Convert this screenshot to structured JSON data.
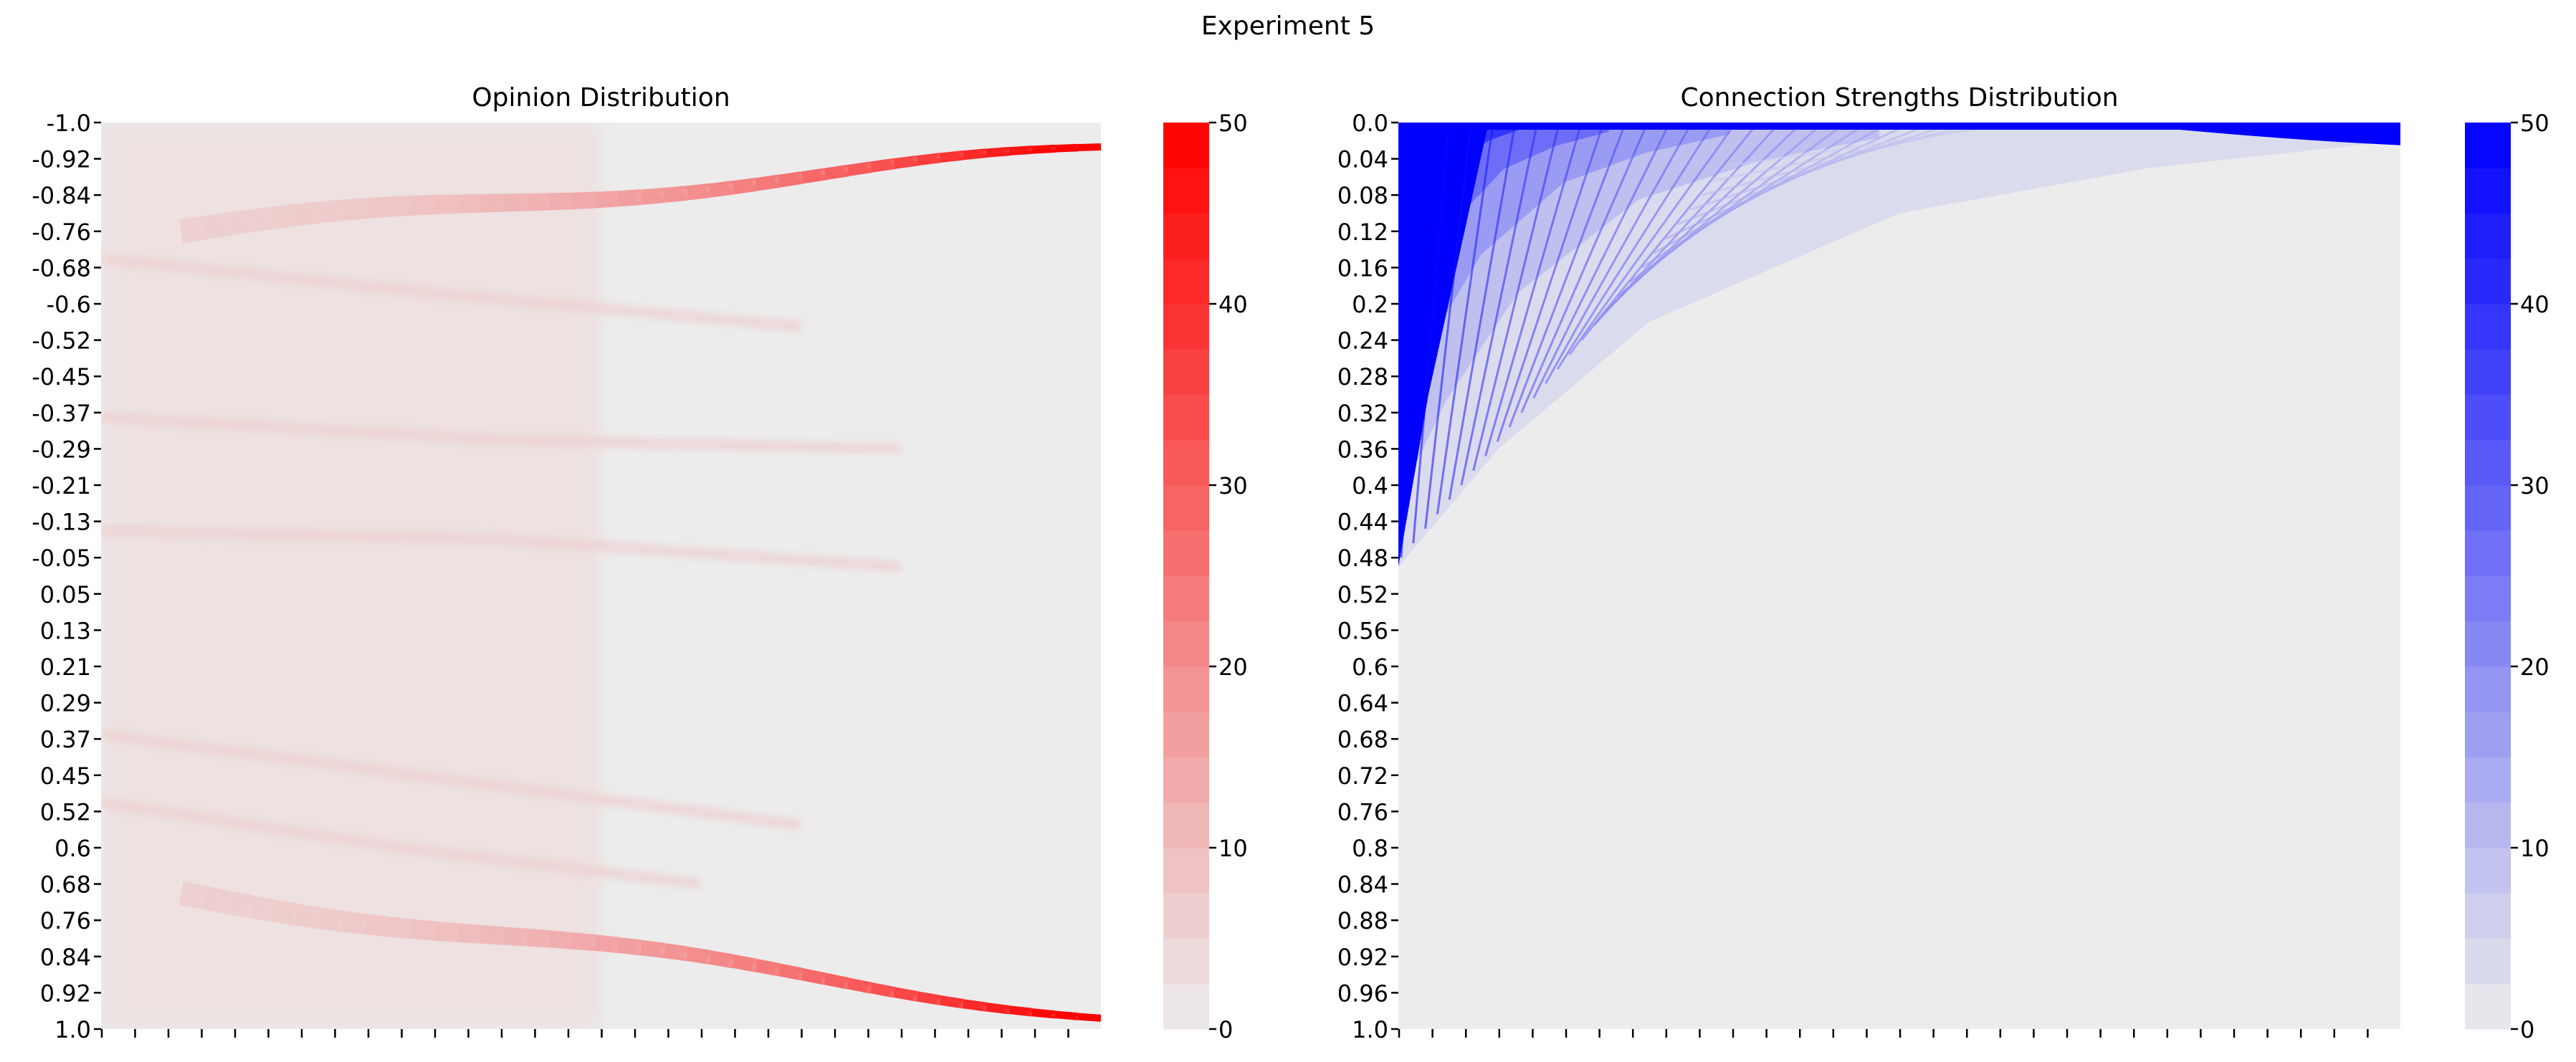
{
  "figure": {
    "suptitle": "Experiment 5"
  },
  "chart_data": [
    {
      "type": "heatmap",
      "title": "Opinion Distribution",
      "xlabel": "",
      "ylabel": "",
      "y_tick_labels": [
        "-1.0",
        "-0.92",
        "-0.84",
        "-0.76",
        "-0.68",
        "-0.6",
        "-0.52",
        "-0.45",
        "-0.37",
        "-0.29",
        "-0.21",
        "-0.13",
        "-0.05",
        "0.05",
        "0.13",
        "0.21",
        "0.29",
        "0.37",
        "0.45",
        "0.52",
        "0.6",
        "0.68",
        "0.76",
        "0.84",
        "0.92",
        "1.0"
      ],
      "x_tick_labels_visible": false,
      "x_tick_count": 30,
      "grid": false,
      "colormap": {
        "low": "#ececec",
        "high": "#ff0000",
        "vmin": 0,
        "vmax": 50,
        "levels": 20
      },
      "colorbar": {
        "ticks": [
          0,
          10,
          20,
          30,
          40,
          50
        ]
      },
      "bands": [
        {
          "from": [
            0.08,
            -0.76
          ],
          "to": [
            1.0,
            -0.94
          ],
          "peak": 50
        },
        {
          "from": [
            0.08,
            0.7
          ],
          "to": [
            1.0,
            0.97
          ],
          "peak": 50
        }
      ]
    },
    {
      "type": "heatmap",
      "title": "Connection Strengths Distribution",
      "xlabel": "",
      "ylabel": "",
      "y_tick_labels": [
        "0.0",
        "0.04",
        "0.08",
        "0.12",
        "0.16",
        "0.2",
        "0.24",
        "0.28",
        "0.32",
        "0.36",
        "0.4",
        "0.44",
        "0.48",
        "0.52",
        "0.56",
        "0.6",
        "0.64",
        "0.68",
        "0.72",
        "0.76",
        "0.8",
        "0.84",
        "0.88",
        "0.92",
        "0.96",
        "1.0"
      ],
      "x_tick_labels_visible": false,
      "x_tick_count": 30,
      "grid": false,
      "colormap": {
        "low": "#ececec",
        "high": "#0000ff",
        "vmin": 0,
        "vmax": 50,
        "levels": 20
      },
      "colorbar": {
        "ticks": [
          0,
          10,
          20,
          30,
          40,
          50
        ]
      },
      "envelope": [
        {
          "x": 0.0,
          "y": 0.49
        },
        {
          "x": 0.1,
          "y": 0.36
        },
        {
          "x": 0.25,
          "y": 0.22
        },
        {
          "x": 0.5,
          "y": 0.1
        },
        {
          "x": 0.75,
          "y": 0.05
        },
        {
          "x": 1.0,
          "y": 0.02
        }
      ]
    }
  ]
}
